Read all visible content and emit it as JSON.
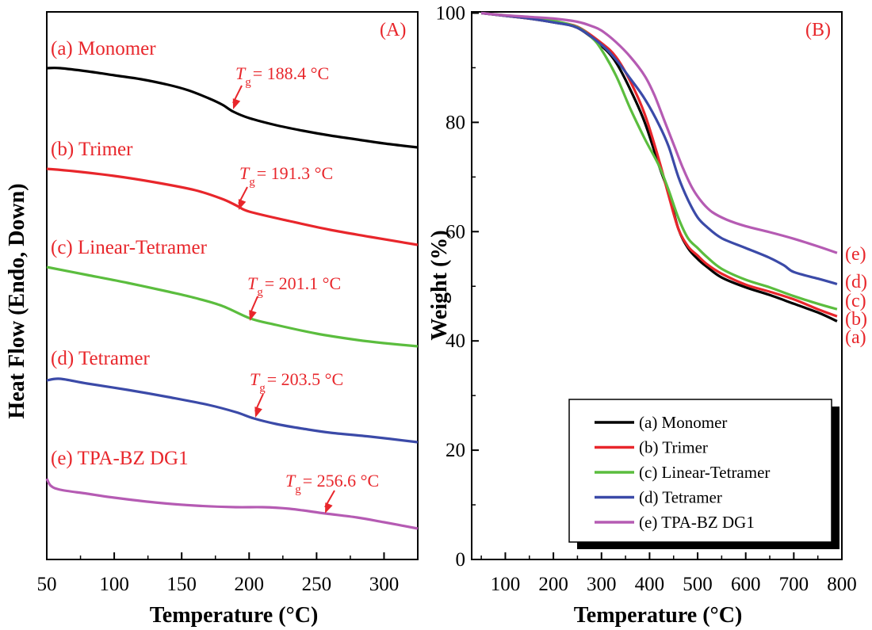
{
  "chart_data": [
    {
      "type": "line",
      "panel_label": "(A)",
      "xlabel": "Temperature (°C)",
      "ylabel": "Heat Flow (Endo, Down)",
      "xlim": [
        50,
        325
      ],
      "xticks": [
        50,
        100,
        150,
        200,
        250,
        300
      ],
      "y_ticks_shown": false,
      "series": [
        {
          "name": "(a) Monomer",
          "color": "#000000",
          "tg_label": "T",
          "tg_sub": "g",
          "tg_value": "= 188.4 °C",
          "tg_x": 188.4,
          "points": [
            [
              50,
              86
            ],
            [
              60,
              86
            ],
            [
              80,
              90
            ],
            [
              100,
              95
            ],
            [
              120,
              100
            ],
            [
              140,
              107
            ],
            [
              155,
              114
            ],
            [
              170,
              124
            ],
            [
              180,
              132
            ],
            [
              188.4,
              141
            ],
            [
              200,
              149
            ],
            [
              220,
              158
            ],
            [
              240,
              165
            ],
            [
              260,
              171
            ],
            [
              280,
              176
            ],
            [
              300,
              181
            ],
            [
              325,
              186
            ]
          ]
        },
        {
          "name": "(b) Trimer",
          "color": "#e8262b",
          "tg_label": "T",
          "tg_sub": "g",
          "tg_value": "= 191.3 °C",
          "tg_x": 191.3,
          "points": [
            [
              50,
              213
            ],
            [
              70,
              216
            ],
            [
              100,
              222
            ],
            [
              130,
              230
            ],
            [
              160,
              240
            ],
            [
              180,
              251
            ],
            [
              191.3,
              260
            ],
            [
              200,
              267
            ],
            [
              230,
              279
            ],
            [
              260,
              290
            ],
            [
              290,
              299
            ],
            [
              325,
              309
            ]
          ]
        },
        {
          "name": "(c) Linear-Tetramer",
          "color": "#5bbd3e",
          "tg_label": "T",
          "tg_sub": "g",
          "tg_value": "= 201.1 °C",
          "tg_x": 201.1,
          "points": [
            [
              50,
              337
            ],
            [
              80,
              347
            ],
            [
              110,
              357
            ],
            [
              140,
              368
            ],
            [
              160,
              376
            ],
            [
              180,
              386
            ],
            [
              201.1,
              402
            ],
            [
              220,
              410
            ],
            [
              250,
              421
            ],
            [
              280,
              429
            ],
            [
              300,
              433
            ],
            [
              325,
              437
            ]
          ]
        },
        {
          "name": "(d) Tetramer",
          "color": "#3b4aa8",
          "tg_label": "T",
          "tg_sub": "g",
          "tg_value": "= 203.5 °C",
          "tg_x": 203.5,
          "points": [
            [
              50,
              480
            ],
            [
              60,
              478
            ],
            [
              80,
              484
            ],
            [
              110,
              492
            ],
            [
              140,
              501
            ],
            [
              170,
              511
            ],
            [
              190,
              520
            ],
            [
              203.5,
              528
            ],
            [
              220,
              535
            ],
            [
              240,
              541
            ],
            [
              260,
              546
            ],
            [
              290,
              551
            ],
            [
              325,
              558
            ]
          ]
        },
        {
          "name": "(e) TPA-BZ DG1",
          "color": "#b55bb3",
          "tg_label": "T",
          "tg_sub": "g",
          "tg_value": "= 256.6 °C",
          "tg_x": 256.6,
          "points": [
            [
              50,
              604
            ],
            [
              53,
              613
            ],
            [
              60,
              618
            ],
            [
              80,
              623
            ],
            [
              100,
              628
            ],
            [
              130,
              634
            ],
            [
              160,
              638
            ],
            [
              190,
              640
            ],
            [
              210,
              640
            ],
            [
              230,
              642
            ],
            [
              256.6,
              648
            ],
            [
              280,
              653
            ],
            [
              300,
              659
            ],
            [
              325,
              667
            ]
          ]
        }
      ]
    },
    {
      "type": "line",
      "panel_label": "(B)",
      "xlabel": "Temperature (°C)",
      "ylabel": "Weight (%)",
      "xlim": [
        30,
        800
      ],
      "ylim": [
        0,
        100
      ],
      "xticks": [
        100,
        200,
        300,
        400,
        500,
        600,
        700,
        800
      ],
      "yticks": [
        0,
        20,
        40,
        60,
        80,
        100
      ],
      "legend_position": "bottom-right",
      "series": [
        {
          "name": "(a) Monomer",
          "color": "#000000",
          "end_label": "(a)",
          "points": [
            [
              50,
              100
            ],
            [
              100,
              99.5
            ],
            [
              150,
              99
            ],
            [
              200,
              98.3
            ],
            [
              250,
              97.3
            ],
            [
              300,
              94
            ],
            [
              330,
              91
            ],
            [
              360,
              86
            ],
            [
              390,
              80
            ],
            [
              420,
              72
            ],
            [
              440,
              67
            ],
            [
              460,
              60.5
            ],
            [
              480,
              57
            ],
            [
              500,
              55
            ],
            [
              520,
              53.5
            ],
            [
              550,
              51.6
            ],
            [
              600,
              49.8
            ],
            [
              650,
              48.4
            ],
            [
              700,
              46.8
            ],
            [
              750,
              45.2
            ],
            [
              790,
              43.6
            ]
          ]
        },
        {
          "name": "(b) Trimer",
          "color": "#e8262b",
          "end_label": "(b)",
          "points": [
            [
              50,
              100
            ],
            [
              100,
              99.5
            ],
            [
              150,
              99
            ],
            [
              200,
              98.4
            ],
            [
              250,
              97.5
            ],
            [
              300,
              94.5
            ],
            [
              330,
              92
            ],
            [
              360,
              87.5
            ],
            [
              390,
              81.5
            ],
            [
              420,
              73
            ],
            [
              440,
              66.5
            ],
            [
              460,
              60.5
            ],
            [
              480,
              57.3
            ],
            [
              500,
              55.6
            ],
            [
              520,
              54
            ],
            [
              550,
              52.3
            ],
            [
              600,
              50.3
            ],
            [
              650,
              49
            ],
            [
              700,
              47.6
            ],
            [
              750,
              45.8
            ],
            [
              790,
              44.5
            ]
          ]
        },
        {
          "name": "(c) Linear-Tetramer",
          "color": "#5bbd3e",
          "end_label": "(c)",
          "points": [
            [
              50,
              100
            ],
            [
              100,
              99.6
            ],
            [
              150,
              99.1
            ],
            [
              200,
              98.6
            ],
            [
              250,
              97.4
            ],
            [
              280,
              95.5
            ],
            [
              300,
              93.3
            ],
            [
              330,
              88.6
            ],
            [
              360,
              82.5
            ],
            [
              390,
              77
            ],
            [
              420,
              72
            ],
            [
              440,
              67.5
            ],
            [
              460,
              62.5
            ],
            [
              480,
              58.8
            ],
            [
              500,
              57
            ],
            [
              520,
              55.3
            ],
            [
              550,
              53.2
            ],
            [
              600,
              51.2
            ],
            [
              650,
              49.8
            ],
            [
              700,
              48.2
            ],
            [
              750,
              46.8
            ],
            [
              790,
              45.8
            ]
          ]
        },
        {
          "name": "(d) Tetramer",
          "color": "#3b4aa8",
          "end_label": "(d)",
          "points": [
            [
              50,
              100
            ],
            [
              100,
              99.5
            ],
            [
              150,
              99
            ],
            [
              200,
              98.3
            ],
            [
              250,
              97.3
            ],
            [
              300,
              94.2
            ],
            [
              330,
              91.5
            ],
            [
              360,
              88
            ],
            [
              390,
              84.3
            ],
            [
              420,
              79.5
            ],
            [
              440,
              75.5
            ],
            [
              460,
              70
            ],
            [
              480,
              65.8
            ],
            [
              500,
              62.6
            ],
            [
              520,
              60.8
            ],
            [
              550,
              58.8
            ],
            [
              600,
              57
            ],
            [
              650,
              55.2
            ],
            [
              680,
              53.8
            ],
            [
              700,
              52.6
            ],
            [
              750,
              51.4
            ],
            [
              790,
              50.4
            ]
          ]
        },
        {
          "name": "(e) TPA-BZ DG1",
          "color": "#b55bb3",
          "end_label": "(e)",
          "points": [
            [
              50,
              100
            ],
            [
              100,
              99.6
            ],
            [
              150,
              99.3
            ],
            [
              200,
              99
            ],
            [
              250,
              98.4
            ],
            [
              280,
              97.6
            ],
            [
              300,
              96.8
            ],
            [
              330,
              94.7
            ],
            [
              360,
              92
            ],
            [
              390,
              88.5
            ],
            [
              410,
              85
            ],
            [
              430,
              80.5
            ],
            [
              450,
              76
            ],
            [
              470,
              71.5
            ],
            [
              490,
              67.8
            ],
            [
              510,
              65.3
            ],
            [
              530,
              63.6
            ],
            [
              560,
              62.2
            ],
            [
              600,
              61
            ],
            [
              650,
              59.9
            ],
            [
              700,
              58.7
            ],
            [
              750,
              57.3
            ],
            [
              790,
              56.1
            ]
          ]
        }
      ]
    }
  ]
}
